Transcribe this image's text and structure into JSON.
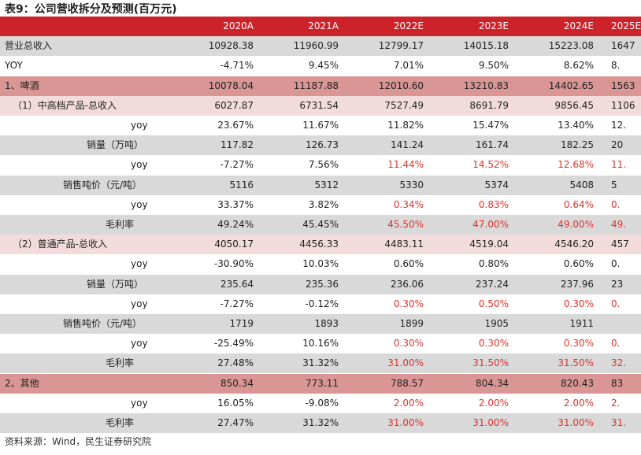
{
  "title": "表9：公司营收拆分及预测(百万元)",
  "table": {
    "header": [
      "",
      "2020A",
      "2021A",
      "2022E",
      "2023E",
      "2024E",
      "2025E"
    ],
    "rows": [
      [
        "营业总收入",
        "10928.38",
        "11960.99",
        "12799.17",
        "14015.18",
        "15223.08",
        "1647"
      ],
      [
        "YOY",
        "-4.71%",
        "9.45%",
        "7.01%",
        "9.50%",
        "8.62%",
        "8."
      ],
      [
        "1、啤酒",
        "10078.04",
        "11187.88",
        "12010.60",
        "13210.83",
        "14402.65",
        "1563"
      ],
      [
        "（1）中高档产品-总收入",
        "6027.87",
        "6731.54",
        "7527.49",
        "8691.79",
        "9856.45",
        "1106"
      ],
      [
        "yoy",
        "23.67%",
        "11.67%",
        "11.82%",
        "15.47%",
        "13.40%",
        "12."
      ],
      [
        "销量（万吨）",
        "117.82",
        "126.73",
        "141.24",
        "161.74",
        "182.25",
        "20"
      ],
      [
        "yoy",
        "-7.27%",
        "7.56%",
        "11.44%",
        "14.52%",
        "12.68%",
        "11."
      ],
      [
        "销售吨价（元/吨）",
        "5116",
        "5312",
        "5330",
        "5374",
        "5408",
        "5"
      ],
      [
        "yoy",
        "33.37%",
        "3.82%",
        "0.34%",
        "0.83%",
        "0.64%",
        "0."
      ],
      [
        "毛利率",
        "49.24%",
        "45.45%",
        "45.50%",
        "47.00%",
        "49.00%",
        "49."
      ],
      [
        "（2）普通产品-总收入",
        "4050.17",
        "4456.33",
        "4483.11",
        "4519.04",
        "4546.20",
        "457"
      ],
      [
        "yoy",
        "-30.90%",
        "10.03%",
        "0.60%",
        "0.80%",
        "0.60%",
        "0."
      ],
      [
        "销量（万吨）",
        "235.64",
        "235.36",
        "236.06",
        "237.24",
        "237.96",
        "23"
      ],
      [
        "yoy",
        "-7.27%",
        "-0.12%",
        "0.30%",
        "0.50%",
        "0.30%",
        "0."
      ],
      [
        "销售吨价（元/吨）",
        "1719",
        "1893",
        "1899",
        "1905",
        "1911",
        null
      ],
      [
        "yoy",
        "-25.49%",
        "10.16%",
        "0.30%",
        "0.30%",
        "0.30%",
        "0."
      ],
      [
        "毛利率",
        "27.48%",
        "31.32%",
        "31.00%",
        "31.50%",
        "31.50%",
        "32."
      ],
      [
        "2、其他",
        "850.34",
        "773.11",
        "788.57",
        "804.34",
        "820.43",
        "83"
      ],
      [
        "yoy",
        "16.05%",
        "-9.08%",
        "2.00%",
        "2.00%",
        "2.00%",
        "2."
      ],
      [
        "毛利率",
        "27.47%",
        "31.32%",
        "31.00%",
        "31.00%",
        "31.00%",
        "31."
      ]
    ]
  },
  "source": "资料来源：Wind，民生证券研究院"
}
